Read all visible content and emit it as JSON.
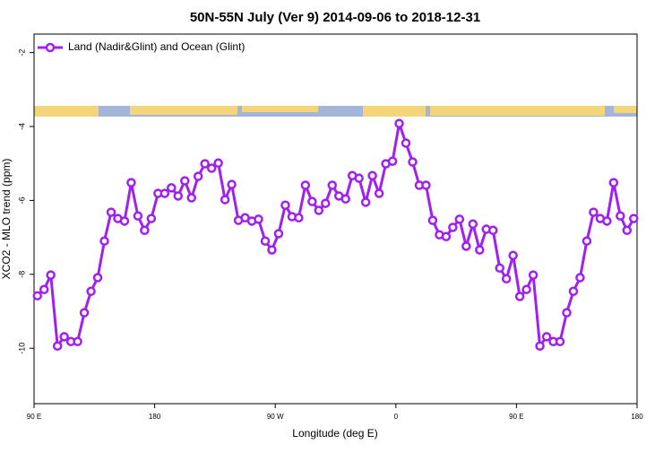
{
  "chart_data": {
    "type": "line",
    "title": "50N-55N July (Ver 9)   2014-09-06 to 2018-12-31",
    "xlabel": "Longitude (deg E)",
    "ylabel": "XCO2 - MLO trend (ppm)",
    "xlim": [
      90,
      540
    ],
    "ylim": [
      -11.5,
      -1.5
    ],
    "xticks": [
      {
        "value": 90,
        "label": "90 E"
      },
      {
        "value": 180,
        "label": "180"
      },
      {
        "value": 270,
        "label": "90 W"
      },
      {
        "value": 360,
        "label": "0"
      },
      {
        "value": 450,
        "label": "90 E"
      },
      {
        "value": 540,
        "label": "180"
      }
    ],
    "yticks": [
      -10,
      -8,
      -6,
      -4,
      -2
    ],
    "legend": "top-left",
    "x": [
      92.5,
      97.5,
      102.5,
      107.5,
      112.5,
      117.5,
      122.5,
      127.5,
      132.5,
      137.5,
      142.5,
      147.5,
      152.5,
      157.5,
      162.5,
      167.5,
      172.5,
      177.5,
      182.5,
      187.5,
      192.5,
      197.5,
      202.5,
      207.5,
      212.5,
      217.5,
      222.5,
      227.5,
      232.5,
      237.5,
      242.5,
      247.5,
      252.5,
      257.5,
      262.5,
      267.5,
      272.5,
      277.5,
      282.5,
      287.5,
      292.5,
      297.5,
      302.5,
      307.5,
      312.5,
      317.5,
      322.5,
      327.5,
      332.5,
      337.5,
      342.5,
      347.5,
      352.5,
      357.5,
      362.5,
      367.5,
      372.5,
      377.5,
      382.5,
      387.5,
      392.5,
      397.5,
      402.5,
      407.5,
      412.5,
      417.5,
      422.5,
      427.5,
      432.5,
      437.5,
      442.5,
      447.5,
      452.5,
      457.5,
      462.5,
      467.5,
      472.5,
      477.5,
      482.5,
      487.5,
      492.5,
      497.5,
      502.5,
      507.5,
      512.5,
      517.5,
      522.5,
      527.5,
      532.5,
      537.5
    ],
    "series": [
      {
        "name": "Land (Nadir&Glint) and Ocean (Glint)",
        "color": "#a020f0",
        "values": [
          -8.58,
          -8.41,
          -8.02,
          -9.94,
          -9.69,
          -9.82,
          -9.82,
          -9.04,
          -8.46,
          -8.09,
          -7.1,
          -6.32,
          -6.49,
          -6.56,
          -5.52,
          -6.42,
          -6.81,
          -6.49,
          -5.81,
          -5.81,
          -5.66,
          -5.88,
          -5.47,
          -5.93,
          -5.35,
          -5.01,
          -5.13,
          -4.99,
          -5.98,
          -5.57,
          -6.54,
          -6.47,
          -6.56,
          -6.51,
          -7.1,
          -7.34,
          -6.9,
          -6.13,
          -6.44,
          -6.47,
          -5.59,
          -6.03,
          -6.27,
          -6.08,
          -5.59,
          -5.88,
          -5.96,
          -5.33,
          -5.4,
          -6.05,
          -5.33,
          -5.81,
          -5.01,
          -4.94,
          -3.92,
          -4.45,
          -4.96,
          -5.59,
          -5.59,
          -6.54,
          -6.93,
          -6.98,
          -6.73,
          -6.51,
          -7.24,
          -6.64,
          -7.34,
          -6.78,
          -6.81,
          -7.83,
          -8.12,
          -7.49,
          -8.6,
          -8.41,
          -8.02,
          -9.94,
          -9.69,
          -9.82,
          -9.82,
          -9.04,
          -8.46,
          -8.09,
          -7.1,
          -6.32,
          -6.49,
          -6.56,
          -5.52,
          -6.42,
          -6.81,
          -6.49
        ]
      }
    ]
  }
}
